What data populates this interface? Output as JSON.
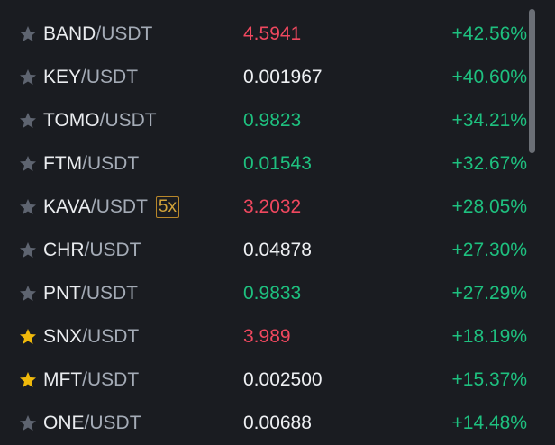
{
  "market_list": {
    "rows": [
      {
        "base": "BAND",
        "quote": "/USDT",
        "price": "4.5941",
        "trend": "down",
        "change": "+42.56%",
        "favorite": false
      },
      {
        "base": "KEY",
        "quote": "/USDT",
        "price": "0.001967",
        "trend": "flat",
        "change": "+40.60%",
        "favorite": false
      },
      {
        "base": "TOMO",
        "quote": "/USDT",
        "price": "0.9823",
        "trend": "up",
        "change": "+34.21%",
        "favorite": false
      },
      {
        "base": "FTM",
        "quote": "/USDT",
        "price": "0.01543",
        "trend": "up",
        "change": "+32.67%",
        "favorite": false
      },
      {
        "base": "KAVA",
        "quote": "/USDT",
        "leverage": "5x",
        "price": "3.2032",
        "trend": "down",
        "change": "+28.05%",
        "favorite": false
      },
      {
        "base": "CHR",
        "quote": "/USDT",
        "price": "0.04878",
        "trend": "flat",
        "change": "+27.30%",
        "favorite": false
      },
      {
        "base": "PNT",
        "quote": "/USDT",
        "price": "0.9833",
        "trend": "up",
        "change": "+27.29%",
        "favorite": false
      },
      {
        "base": "SNX",
        "quote": "/USDT",
        "price": "3.989",
        "trend": "down",
        "change": "+18.19%",
        "favorite": true
      },
      {
        "base": "MFT",
        "quote": "/USDT",
        "price": "0.002500",
        "trend": "flat",
        "change": "+15.37%",
        "favorite": true
      },
      {
        "base": "ONE",
        "quote": "/USDT",
        "price": "0.00688",
        "trend": "flat",
        "change": "+14.48%",
        "favorite": false
      }
    ]
  }
}
